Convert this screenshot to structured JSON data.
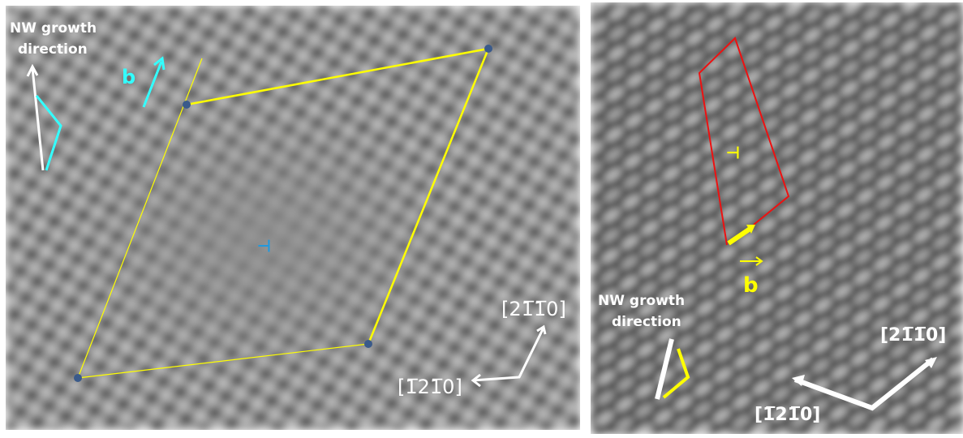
{
  "left_panel": {
    "growth_label": [
      "NW growth",
      "direction"
    ],
    "burgers_label": "b",
    "dislocation_symbol": "⊥",
    "direction_1": "[21̅1̅0]",
    "direction_2": "[1̅21̅0]"
  },
  "right_panel": {
    "growth_label": [
      "NW growth",
      "direction"
    ],
    "burgers_label": "b",
    "dislocation_symbol": "⊥",
    "direction_1": "[21̅1̅0]",
    "direction_2": "[1̅21̅0]"
  }
}
